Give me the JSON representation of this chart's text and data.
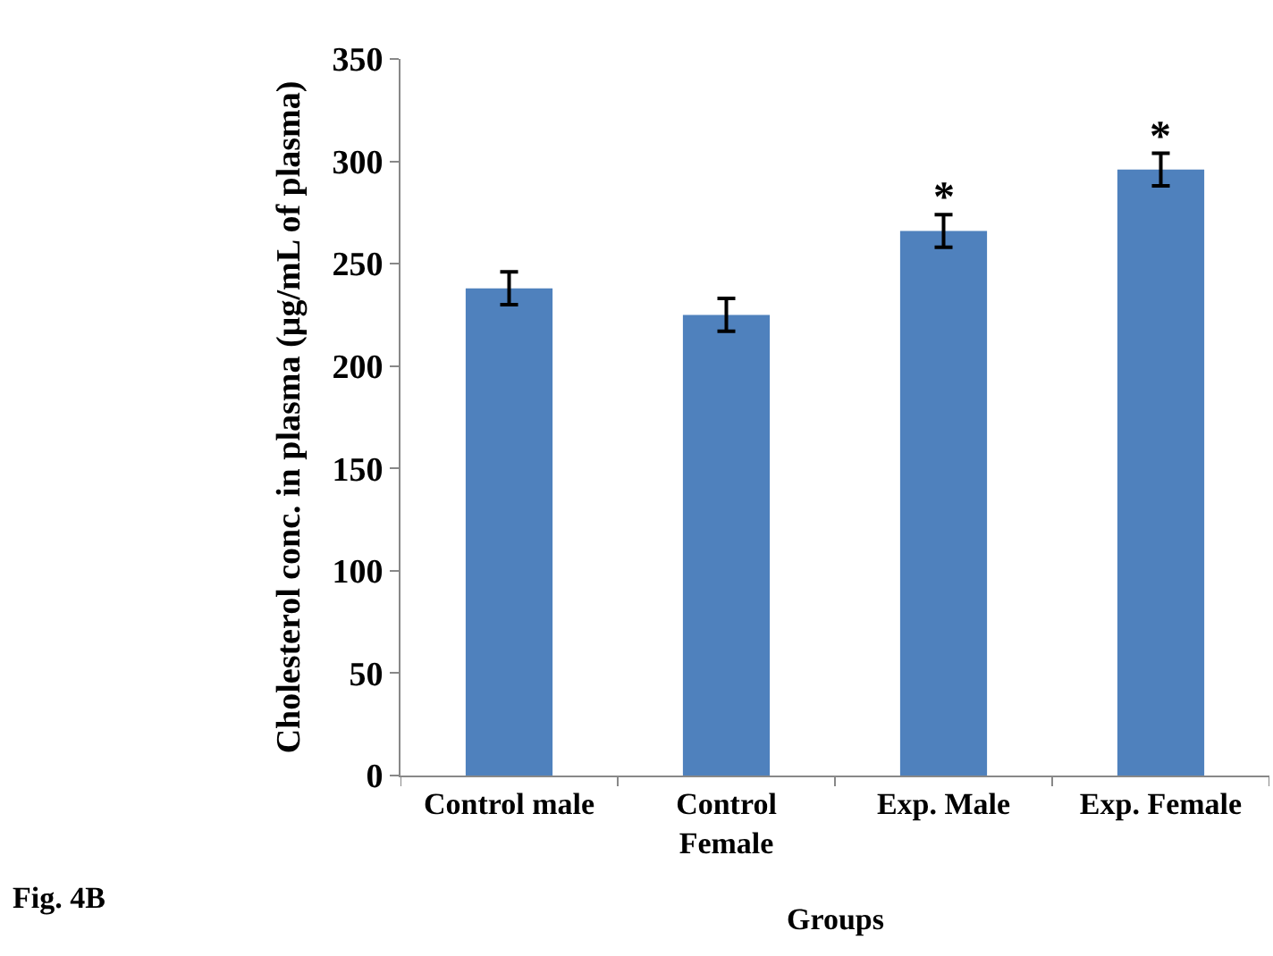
{
  "chart_data": {
    "type": "bar",
    "xlabel": "Groups",
    "ylabel": "Cholesterol conc. in plasma (µg/mL of plasma)",
    "categories": [
      "Control male",
      "Control Female",
      "Exp. Male",
      "Exp. Female"
    ],
    "values": [
      238,
      225,
      266,
      296
    ],
    "errors": [
      8,
      8,
      8,
      8
    ],
    "color": "#4f81bd",
    "ylim": [
      0,
      350
    ],
    "yticks": [
      0,
      50,
      100,
      150,
      200,
      250,
      300,
      350
    ],
    "grid": false,
    "annotations": [
      {
        "text": "*",
        "x": "Exp. Male",
        "y": 266
      },
      {
        "text": "*",
        "x": "Exp. Female",
        "y": 296
      },
      "Fig. 4B"
    ]
  }
}
